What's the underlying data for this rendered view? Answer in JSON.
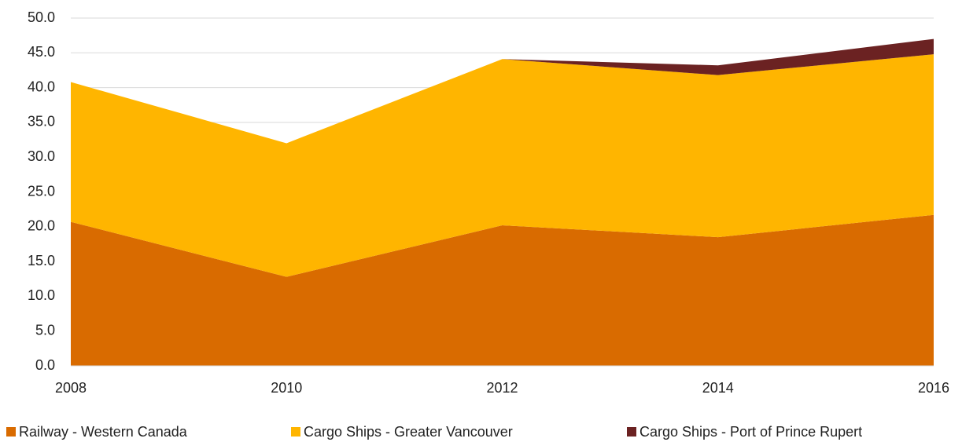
{
  "chart_data": {
    "type": "area",
    "x": [
      2008,
      2010,
      2012,
      2014,
      2016
    ],
    "xlim": [
      2008,
      2016
    ],
    "xticks": [
      2008,
      2010,
      2012,
      2014,
      2016
    ],
    "ylim": [
      0,
      50
    ],
    "yticks": [
      {
        "value": 0,
        "label": "0.0"
      },
      {
        "value": 5,
        "label": "5.0"
      },
      {
        "value": 10,
        "label": "10.0"
      },
      {
        "value": 15,
        "label": "15.0"
      },
      {
        "value": 20,
        "label": "20.0"
      },
      {
        "value": 25,
        "label": "25.0"
      },
      {
        "value": 30,
        "label": "30.0"
      },
      {
        "value": 35,
        "label": "35.0"
      },
      {
        "value": 40,
        "label": "40.0"
      },
      {
        "value": 45,
        "label": "45.0"
      },
      {
        "value": 50,
        "label": "50.0"
      }
    ],
    "grid": true,
    "stacked": true,
    "legend": "bottom",
    "series": [
      {
        "name": "Railway - Western Canada",
        "color": "#d96b00",
        "values": [
          20.7,
          12.8,
          20.2,
          18.5,
          21.7
        ]
      },
      {
        "name": "Cargo Ships - Greater Vancouver",
        "color": "#ffb500",
        "values": [
          20.1,
          19.2,
          23.9,
          23.3,
          23.1
        ]
      },
      {
        "name": "Cargo Ships - Port of Prince Rupert",
        "color": "#6b2222",
        "values": [
          0,
          0,
          0,
          1.4,
          2.2
        ]
      }
    ]
  }
}
